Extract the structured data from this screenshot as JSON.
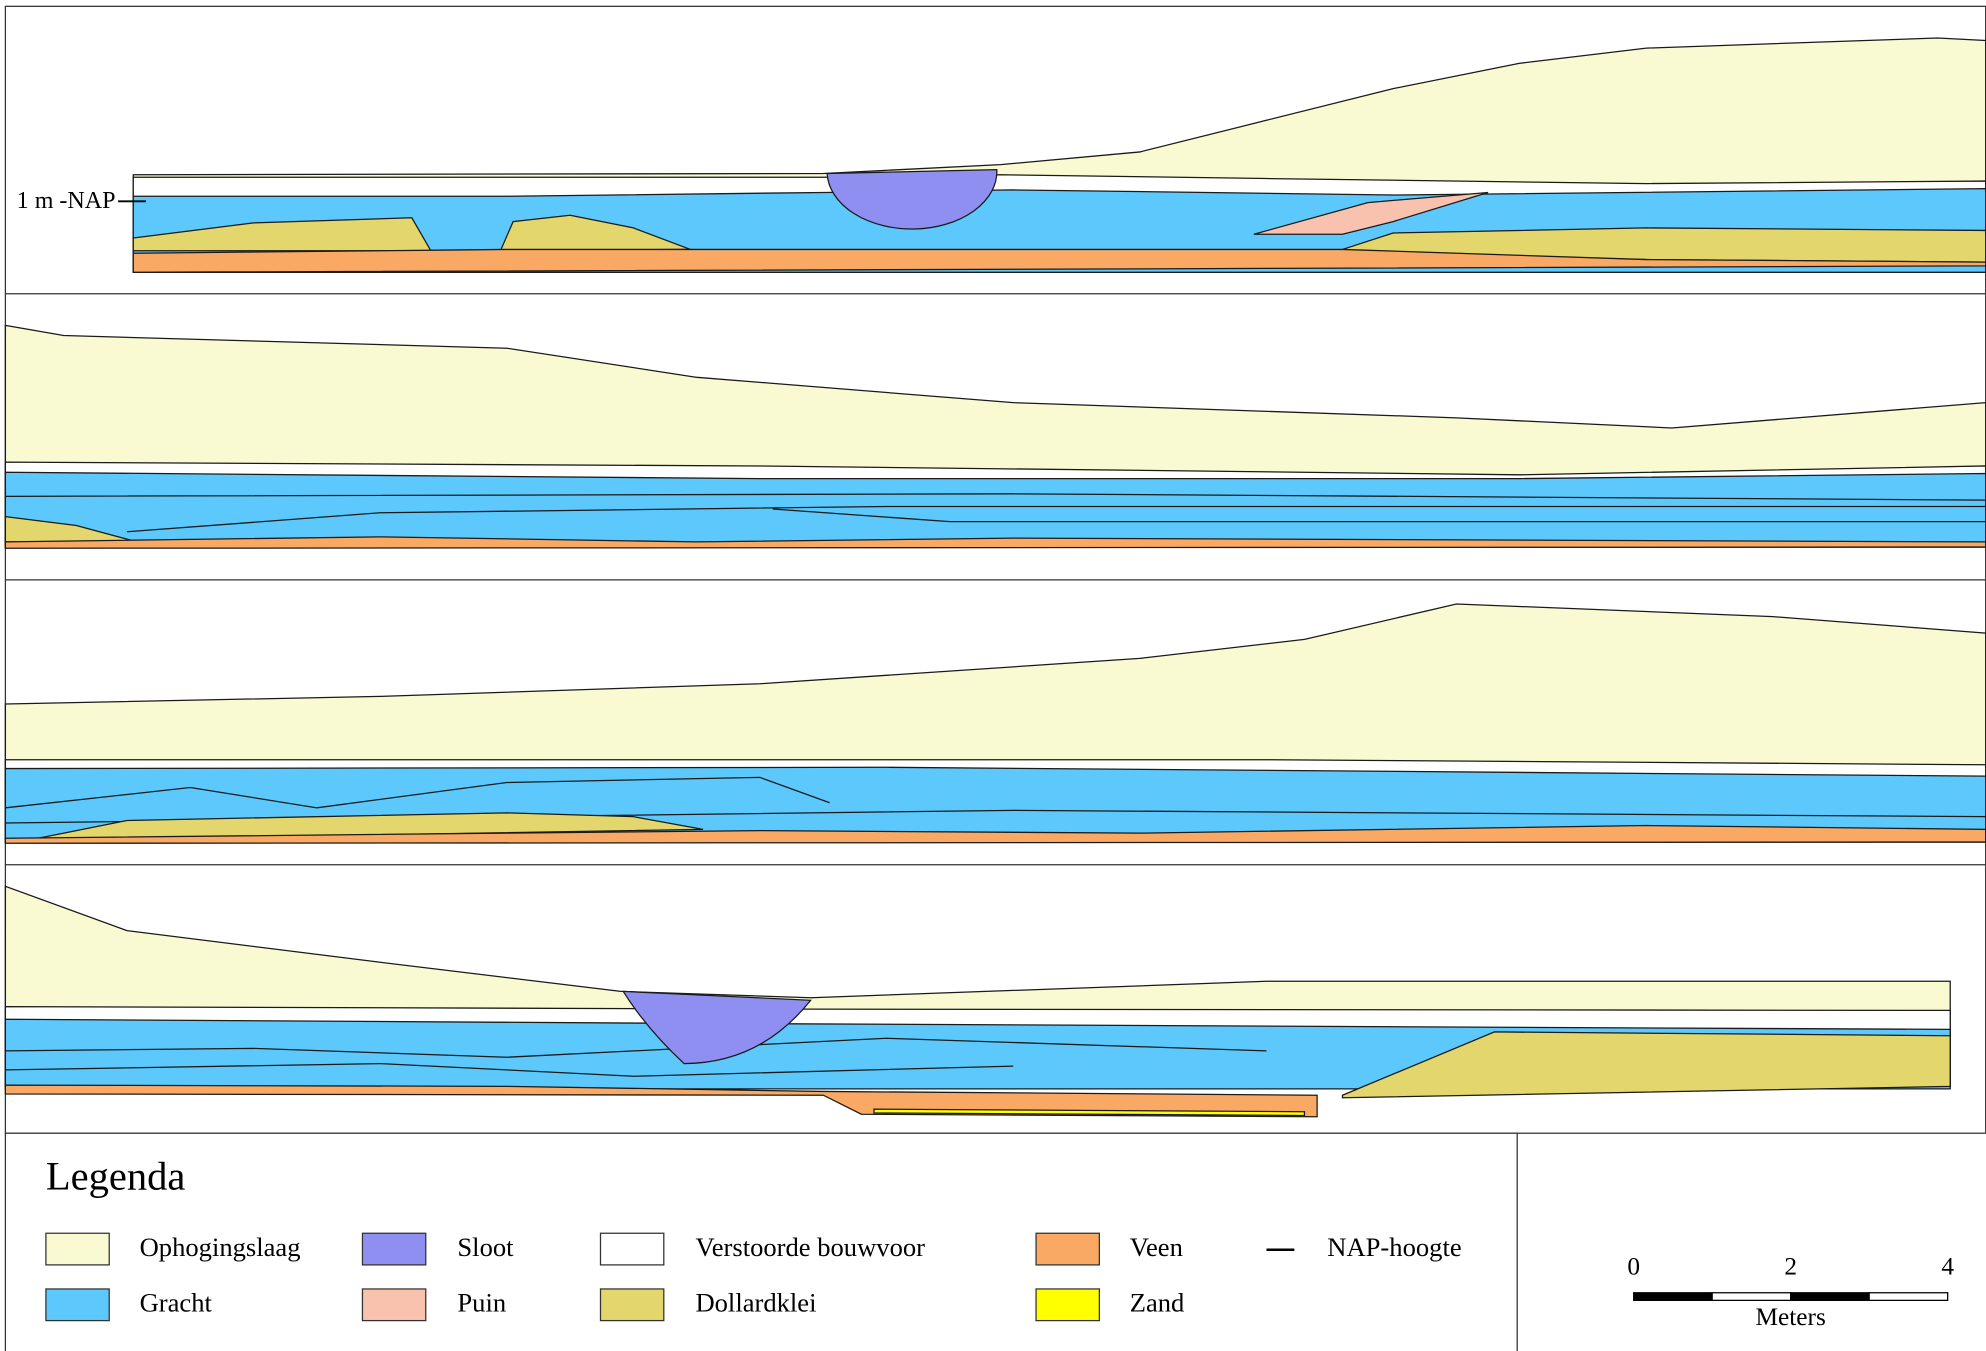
{
  "profile_label": "1 m -NAP",
  "legend": {
    "title": "Legenda",
    "items": [
      {
        "label": "Ophogingslaag",
        "color": "#f9f9d2"
      },
      {
        "label": "Sloot",
        "color": "#8f8ff2"
      },
      {
        "label": "Verstoorde bouwvoor",
        "color": "#ffffff"
      },
      {
        "label": "Veen",
        "color": "#f9a964"
      },
      {
        "label": "NAP-hoogte"
      },
      {
        "label": "Gracht",
        "color": "#5cc8fb"
      },
      {
        "label": "Puin",
        "color": "#f8c2ae"
      },
      {
        "label": "Dollardklei",
        "color": "#e2d66c"
      },
      {
        "label": "Zand",
        "color": "#ffff00"
      }
    ]
  },
  "scale_bar": {
    "ticks": [
      "0",
      "2",
      "4"
    ],
    "unit": "Meters"
  }
}
